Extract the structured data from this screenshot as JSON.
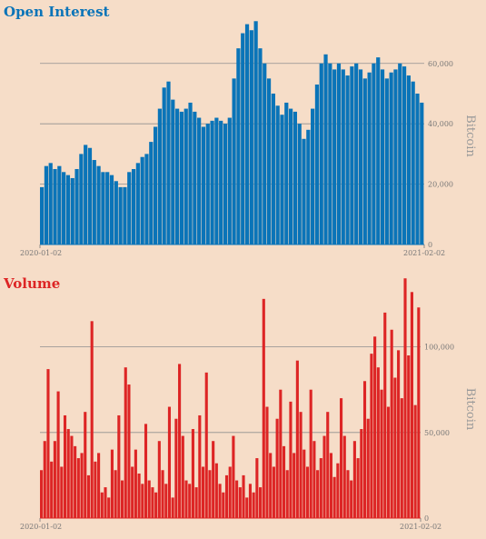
{
  "chart_data": [
    {
      "type": "bar",
      "title": "Open Interest",
      "ylabel": "Bitcoin",
      "color": "#0a74b8",
      "ylim": [
        0,
        78000
      ],
      "yticks": [
        0,
        20000,
        40000,
        60000
      ],
      "ytick_labels": [
        "0",
        "20,000",
        "40,000",
        "60,000"
      ],
      "gridlines": true,
      "x_start_label": "2020-01-02",
      "x_end_label": "2021-02-02",
      "values": [
        19000,
        26000,
        27000,
        25000,
        26000,
        24000,
        23000,
        22000,
        25000,
        30000,
        33000,
        32000,
        28000,
        26000,
        24000,
        24000,
        23000,
        21000,
        19000,
        19000,
        24000,
        25000,
        27000,
        29000,
        30000,
        34000,
        39000,
        45000,
        52000,
        54000,
        48000,
        45000,
        44000,
        45000,
        47000,
        44000,
        42000,
        39000,
        40000,
        41000,
        42000,
        41000,
        40000,
        42000,
        55000,
        65000,
        70000,
        73000,
        71000,
        74000,
        65000,
        60000,
        55000,
        50000,
        46000,
        43000,
        47000,
        45000,
        44000,
        40000,
        35000,
        38000,
        45000,
        53000,
        60000,
        63000,
        60000,
        58000,
        60000,
        58000,
        56000,
        59000,
        60000,
        58000,
        55000,
        57000,
        60000,
        62000,
        58000,
        55000,
        57000,
        58000,
        60000,
        59000,
        56000,
        54000,
        50000,
        47000
      ]
    },
    {
      "type": "bar",
      "title": "Volume",
      "ylabel": "Bitcoin",
      "color": "#dd2525",
      "ylim": [
        0,
        138000
      ],
      "yticks": [
        0,
        50000,
        100000
      ],
      "ytick_labels": [
        "0",
        "50,000",
        "100,000"
      ],
      "gridlines": true,
      "x_start_label": "2020-01-02",
      "x_end_label": "2021-02-02",
      "values": [
        28000,
        45000,
        87000,
        33000,
        45000,
        74000,
        30000,
        60000,
        52000,
        48000,
        42000,
        35000,
        38000,
        62000,
        25000,
        115000,
        33000,
        38000,
        15000,
        18000,
        12000,
        40000,
        28000,
        60000,
        22000,
        88000,
        78000,
        30000,
        40000,
        26000,
        20000,
        55000,
        22000,
        18000,
        15000,
        45000,
        28000,
        20000,
        65000,
        12000,
        58000,
        90000,
        48000,
        22000,
        20000,
        52000,
        18000,
        60000,
        30000,
        85000,
        28000,
        45000,
        32000,
        20000,
        15000,
        25000,
        30000,
        48000,
        22000,
        18000,
        25000,
        12000,
        20000,
        15000,
        35000,
        18000,
        128000,
        65000,
        38000,
        30000,
        58000,
        75000,
        42000,
        28000,
        68000,
        38000,
        92000,
        62000,
        40000,
        30000,
        75000,
        45000,
        28000,
        35000,
        48000,
        62000,
        38000,
        24000,
        32000,
        70000,
        48000,
        28000,
        22000,
        45000,
        35000,
        52000,
        80000,
        58000,
        96000,
        106000,
        88000,
        75000,
        120000,
        65000,
        110000,
        82000,
        98000,
        70000,
        140000,
        95000,
        132000,
        66000,
        123000
      ]
    }
  ]
}
